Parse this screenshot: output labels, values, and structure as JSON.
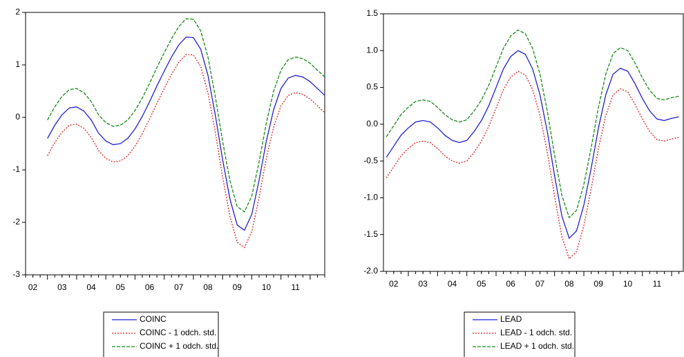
{
  "chart_data": [
    {
      "type": "line",
      "x": [
        3,
        3.25,
        3.5,
        3.75,
        4,
        4.25,
        4.5,
        4.75,
        5,
        5.25,
        5.5,
        5.75,
        6,
        6.25,
        6.5,
        6.75,
        7,
        7.25,
        7.5,
        7.75,
        8,
        8.25,
        8.5,
        8.75,
        9,
        9.25,
        9.5,
        9.75,
        10,
        10.25,
        10.5,
        10.75,
        11,
        11.25,
        11.5,
        11.75,
        12,
        12.25,
        12.5
      ],
      "series": [
        {
          "name": "COINC",
          "color": "#1f1fd0",
          "style": "solid",
          "values": [
            -0.4,
            -0.15,
            0.05,
            0.18,
            0.2,
            0.12,
            -0.05,
            -0.3,
            -0.45,
            -0.52,
            -0.5,
            -0.4,
            -0.22,
            0.02,
            0.3,
            0.6,
            0.88,
            1.15,
            1.38,
            1.53,
            1.52,
            1.3,
            0.8,
            0.05,
            -0.8,
            -1.55,
            -2.05,
            -2.15,
            -1.85,
            -1.2,
            -0.45,
            0.15,
            0.55,
            0.75,
            0.8,
            0.77,
            0.68,
            0.55,
            0.42
          ]
        },
        {
          "name": "COINC - 1 odch. std.",
          "color": "#e02020",
          "style": "dotted",
          "values": [
            -0.73,
            -0.48,
            -0.28,
            -0.15,
            -0.13,
            -0.21,
            -0.38,
            -0.63,
            -0.78,
            -0.85,
            -0.83,
            -0.73,
            -0.55,
            -0.31,
            -0.03,
            0.27,
            0.55,
            0.82,
            1.05,
            1.2,
            1.19,
            0.97,
            0.47,
            -0.28,
            -1.13,
            -1.88,
            -2.38,
            -2.48,
            -2.18,
            -1.53,
            -0.78,
            -0.18,
            0.22,
            0.42,
            0.47,
            0.44,
            0.35,
            0.22,
            0.09
          ]
        },
        {
          "name": "COINC + 1 odch. std.",
          "color": "#138a13",
          "style": "dashed",
          "values": [
            -0.05,
            0.2,
            0.4,
            0.53,
            0.55,
            0.47,
            0.3,
            0.05,
            -0.1,
            -0.17,
            -0.15,
            -0.05,
            0.13,
            0.37,
            0.65,
            0.95,
            1.23,
            1.5,
            1.73,
            1.88,
            1.87,
            1.65,
            1.15,
            0.4,
            -0.45,
            -1.2,
            -1.7,
            -1.8,
            -1.5,
            -0.85,
            -0.1,
            0.5,
            0.9,
            1.1,
            1.15,
            1.12,
            1.03,
            0.9,
            0.77
          ]
        }
      ],
      "xlim": [
        2.25,
        12.5
      ],
      "xticks": [
        {
          "value": 2.5,
          "label": "02"
        },
        {
          "value": 3.5,
          "label": "03"
        },
        {
          "value": 4.5,
          "label": "04"
        },
        {
          "value": 5.5,
          "label": "05"
        },
        {
          "value": 6.5,
          "label": "06"
        },
        {
          "value": 7.5,
          "label": "07"
        },
        {
          "value": 8.5,
          "label": "08"
        },
        {
          "value": 9.5,
          "label": "09"
        },
        {
          "value": 10.5,
          "label": "10"
        },
        {
          "value": 11.5,
          "label": "11"
        }
      ],
      "ylim": [
        -3,
        2
      ],
      "yticks": [
        -3,
        -2,
        -1,
        0,
        1,
        2
      ]
    },
    {
      "type": "line",
      "x": [
        2.25,
        2.5,
        2.75,
        3,
        3.25,
        3.5,
        3.75,
        4,
        4.25,
        4.5,
        4.75,
        5,
        5.25,
        5.5,
        5.75,
        6,
        6.25,
        6.5,
        6.75,
        7,
        7.25,
        7.5,
        7.75,
        8,
        8.25,
        8.5,
        8.75,
        9,
        9.25,
        9.5,
        9.75,
        10,
        10.25,
        10.5,
        10.75,
        11,
        11.25,
        11.5,
        11.75,
        12,
        12.25
      ],
      "series": [
        {
          "name": "LEAD",
          "color": "#1f1fd0",
          "style": "solid",
          "values": [
            -0.45,
            -0.3,
            -0.15,
            -0.05,
            0.03,
            0.05,
            0.03,
            -0.05,
            -0.15,
            -0.22,
            -0.25,
            -0.22,
            -0.1,
            0.05,
            0.25,
            0.5,
            0.75,
            0.92,
            1.0,
            0.95,
            0.75,
            0.4,
            -0.1,
            -0.7,
            -1.25,
            -1.55,
            -1.45,
            -1.1,
            -0.6,
            -0.05,
            0.4,
            0.68,
            0.76,
            0.72,
            0.55,
            0.35,
            0.18,
            0.07,
            0.05,
            0.08,
            0.1
          ]
        },
        {
          "name": "LEAD - 1 odch. std.",
          "color": "#e02020",
          "style": "dotted",
          "values": [
            -0.73,
            -0.58,
            -0.43,
            -0.33,
            -0.25,
            -0.23,
            -0.25,
            -0.33,
            -0.43,
            -0.5,
            -0.53,
            -0.5,
            -0.38,
            -0.23,
            -0.03,
            0.22,
            0.47,
            0.64,
            0.72,
            0.67,
            0.47,
            0.12,
            -0.38,
            -0.98,
            -1.53,
            -1.83,
            -1.73,
            -1.38,
            -0.88,
            -0.33,
            0.12,
            0.4,
            0.48,
            0.44,
            0.27,
            0.07,
            -0.1,
            -0.21,
            -0.23,
            -0.2,
            -0.18
          ]
        },
        {
          "name": "LEAD + 1 odch. std.",
          "color": "#138a13",
          "style": "dashed",
          "values": [
            -0.17,
            -0.02,
            0.13,
            0.23,
            0.31,
            0.33,
            0.31,
            0.23,
            0.13,
            0.06,
            0.03,
            0.06,
            0.18,
            0.33,
            0.53,
            0.78,
            1.03,
            1.2,
            1.28,
            1.23,
            1.03,
            0.68,
            0.18,
            -0.42,
            -0.97,
            -1.27,
            -1.17,
            -0.82,
            -0.32,
            0.23,
            0.68,
            0.96,
            1.04,
            1.0,
            0.83,
            0.63,
            0.46,
            0.35,
            0.33,
            0.36,
            0.38
          ]
        }
      ],
      "xlim": [
        2.15,
        12.4
      ],
      "xticks": [
        {
          "value": 2.5,
          "label": "02"
        },
        {
          "value": 3.5,
          "label": "03"
        },
        {
          "value": 4.5,
          "label": "04"
        },
        {
          "value": 5.5,
          "label": "05"
        },
        {
          "value": 6.5,
          "label": "06"
        },
        {
          "value": 7.5,
          "label": "07"
        },
        {
          "value": 8.5,
          "label": "08"
        },
        {
          "value": 9.5,
          "label": "09"
        },
        {
          "value": 10.5,
          "label": "10"
        },
        {
          "value": 11.5,
          "label": "11"
        }
      ],
      "ylim": [
        -2,
        1.5
      ],
      "yticks": [
        {
          "value": -2,
          "label": "-2.0"
        },
        -1.5,
        {
          "value": -1,
          "label": "-1.0"
        },
        -0.5,
        {
          "value": 0,
          "label": "0.0"
        },
        0.5,
        {
          "value": 1,
          "label": "1.0"
        },
        1.5
      ]
    }
  ]
}
